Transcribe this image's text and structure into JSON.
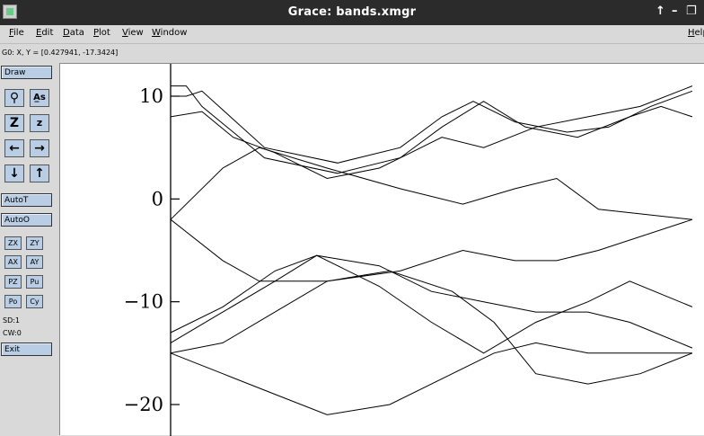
{
  "window": {
    "title": "Grace: bands.xmgr"
  },
  "menu": [
    {
      "label": "File",
      "u": "F",
      "rest": "ile"
    },
    {
      "label": "Edit",
      "u": "E",
      "rest": "dit"
    },
    {
      "label": "Data",
      "u": "D",
      "rest": "ata"
    },
    {
      "label": "Plot",
      "u": "P",
      "rest": "lot"
    },
    {
      "label": "View",
      "u": "V",
      "rest": "iew"
    },
    {
      "label": "Window",
      "u": "W",
      "rest": "indow"
    },
    {
      "label": "Help",
      "u": "H",
      "rest": "elp"
    }
  ],
  "locator": "G0: X, Y = [0.427941, -17.3424]",
  "sidebar": {
    "draw": "Draw",
    "autot": "AutoT",
    "autoo": "AutoO",
    "exit": "Exit",
    "small": [
      "ZX",
      "ZY",
      "AX",
      "AY",
      "PZ",
      "Pu",
      "Po",
      "Cy"
    ],
    "sd": "SD:1",
    "cw": "CW:0"
  },
  "icons": [
    "zoom-icon",
    "autoscale-icon",
    "zoom-in-icon",
    "zoom-out-icon",
    "left-arrow-icon",
    "right-arrow-icon",
    "down-arrow-icon",
    "up-arrow-icon"
  ],
  "chart_data": {
    "type": "line",
    "xlim": [
      0,
      1
    ],
    "ylim": [
      -23,
      13
    ],
    "yticks": [
      10,
      0,
      -10,
      -20
    ],
    "series": [
      {
        "x": [
          0,
          0.03,
          0.06,
          0.18,
          0.32,
          0.44,
          0.52,
          0.6,
          0.68,
          0.78,
          0.88,
          0.94,
          1
        ],
        "y": [
          11,
          11,
          9,
          4,
          2.5,
          4,
          7,
          9.5,
          7,
          6,
          8,
          9,
          8
        ]
      },
      {
        "x": [
          0,
          0.03,
          0.06,
          0.18,
          0.32,
          0.44,
          0.52,
          0.58,
          0.66,
          0.76,
          0.84,
          0.92,
          1
        ],
        "y": [
          10,
          10,
          10.5,
          5,
          3.5,
          5,
          8,
          9.5,
          7.5,
          6.5,
          7,
          9,
          10.5
        ]
      },
      {
        "x": [
          0,
          0.06,
          0.12,
          0.2,
          0.3,
          0.4,
          0.46,
          0.52,
          0.6,
          0.7,
          0.8,
          0.9,
          1
        ],
        "y": [
          8,
          8.5,
          6,
          4.5,
          2,
          3,
          4.5,
          6,
          5,
          7,
          8,
          9,
          11
        ]
      },
      {
        "x": [
          0,
          0.1,
          0.17,
          0.3,
          0.44,
          0.56,
          0.66,
          0.74,
          0.82,
          1
        ],
        "y": [
          -2,
          3,
          5,
          3,
          1,
          -0.5,
          1,
          2,
          -1,
          -2
        ]
      },
      {
        "x": [
          0,
          0.1,
          0.17,
          0.3,
          0.44,
          0.56,
          0.66,
          0.74,
          0.82,
          1
        ],
        "y": [
          -2,
          -6,
          -8,
          -8,
          -7,
          -5,
          -6,
          -6,
          -5,
          -2
        ]
      },
      {
        "x": [
          0,
          0.1,
          0.2,
          0.28,
          0.4,
          0.5,
          0.6,
          0.7,
          0.8,
          0.88,
          1
        ],
        "y": [
          -13,
          -10.5,
          -7,
          -5.5,
          -8.5,
          -12,
          -15,
          -12,
          -10,
          -8,
          -10.5
        ]
      },
      {
        "x": [
          0,
          0.1,
          0.2,
          0.28,
          0.4,
          0.5,
          0.6,
          0.7,
          0.8,
          0.88,
          1
        ],
        "y": [
          -14,
          -11,
          -8,
          -5.5,
          -6.5,
          -9,
          -10,
          -11,
          -11,
          -12,
          -14.5
        ]
      },
      {
        "x": [
          0,
          0.1,
          0.2,
          0.3,
          0.42,
          0.54,
          0.62,
          0.7,
          0.8,
          0.9,
          1
        ],
        "y": [
          -15,
          -17,
          -19,
          -21,
          -20,
          -17,
          -15,
          -14,
          -15,
          -15,
          -15
        ]
      },
      {
        "x": [
          0,
          0.1,
          0.2,
          0.3,
          0.42,
          0.54,
          0.62,
          0.7,
          0.8,
          0.9,
          1
        ],
        "y": [
          -15,
          -14,
          -11,
          -8,
          -7,
          -9,
          -12,
          -17,
          -18,
          -17,
          -15
        ]
      }
    ]
  }
}
